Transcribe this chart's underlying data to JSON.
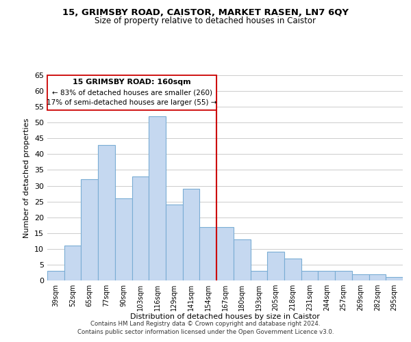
{
  "title": "15, GRIMSBY ROAD, CAISTOR, MARKET RASEN, LN7 6QY",
  "subtitle": "Size of property relative to detached houses in Caistor",
  "xlabel": "Distribution of detached houses by size in Caistor",
  "ylabel": "Number of detached properties",
  "categories": [
    "39sqm",
    "52sqm",
    "65sqm",
    "77sqm",
    "90sqm",
    "103sqm",
    "116sqm",
    "129sqm",
    "141sqm",
    "154sqm",
    "167sqm",
    "180sqm",
    "193sqm",
    "205sqm",
    "218sqm",
    "231sqm",
    "244sqm",
    "257sqm",
    "269sqm",
    "282sqm",
    "295sqm"
  ],
  "values": [
    3,
    11,
    32,
    43,
    26,
    33,
    52,
    24,
    29,
    17,
    17,
    13,
    3,
    9,
    7,
    3,
    3,
    3,
    2,
    2,
    1
  ],
  "bar_color": "#c5d8f0",
  "bar_edge_color": "#7aadd4",
  "ylim": [
    0,
    65
  ],
  "yticks": [
    0,
    5,
    10,
    15,
    20,
    25,
    30,
    35,
    40,
    45,
    50,
    55,
    60,
    65
  ],
  "reference_line_color": "#cc0000",
  "annotation_title": "15 GRIMSBY ROAD: 160sqm",
  "annotation_line1": "← 83% of detached houses are smaller (260)",
  "annotation_line2": "17% of semi-detached houses are larger (55) →",
  "footnote1": "Contains HM Land Registry data © Crown copyright and database right 2024.",
  "footnote2": "Contains public sector information licensed under the Open Government Licence v3.0.",
  "bg_color": "#ffffff",
  "grid_color": "#cccccc"
}
